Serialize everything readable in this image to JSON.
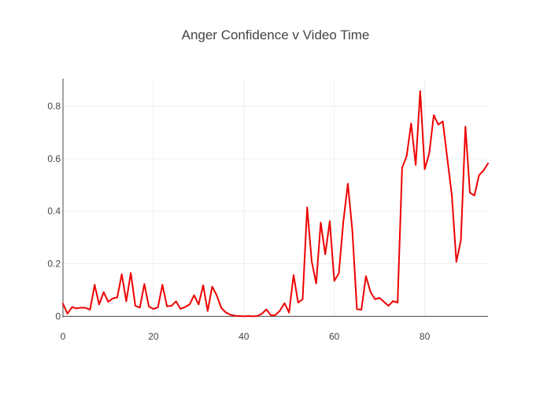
{
  "chart_data": {
    "type": "line",
    "title": "Anger Confidence v Video Time",
    "xlabel": "",
    "ylabel": "",
    "xlim": [
      0,
      94
    ],
    "ylim": [
      -0.005,
      0.905
    ],
    "x_ticks": [
      0,
      20,
      40,
      60,
      80
    ],
    "y_ticks": [
      0,
      0.2,
      0.4,
      0.6,
      0.8
    ],
    "y_tick_labels": [
      "0",
      "0.2",
      "0.4",
      "0.6",
      "0.8"
    ],
    "grid": true,
    "legend": "none",
    "series": [
      {
        "color": "#ee0000",
        "x": [
          0,
          1,
          2,
          3,
          4,
          5,
          6,
          7,
          8,
          9,
          10,
          11,
          12,
          13,
          14,
          15,
          16,
          17,
          18,
          19,
          20,
          21,
          22,
          23,
          24,
          25,
          26,
          27,
          28,
          29,
          30,
          31,
          32,
          33,
          34,
          35,
          36,
          37,
          38,
          39,
          40,
          41,
          42,
          43,
          44,
          45,
          46,
          47,
          48,
          49,
          50,
          51,
          52,
          53,
          54,
          55,
          56,
          57,
          58,
          59,
          60,
          61,
          62,
          63,
          64,
          65,
          66,
          67,
          68,
          69,
          70,
          71,
          72,
          73,
          74,
          75,
          76,
          77,
          78,
          79,
          80,
          81,
          82,
          83,
          84,
          85,
          86,
          87,
          88,
          89,
          90,
          91,
          92,
          93,
          94
        ],
        "y": [
          0.048,
          0.01,
          0.035,
          0.03,
          0.033,
          0.032,
          0.025,
          0.12,
          0.045,
          0.092,
          0.055,
          0.068,
          0.072,
          0.16,
          0.057,
          0.165,
          0.04,
          0.033,
          0.123,
          0.037,
          0.028,
          0.034,
          0.12,
          0.038,
          0.04,
          0.057,
          0.028,
          0.035,
          0.045,
          0.08,
          0.045,
          0.118,
          0.02,
          0.113,
          0.08,
          0.032,
          0.015,
          0.006,
          0.002,
          0.001,
          0.0,
          0.001,
          0.0,
          0.001,
          0.01,
          0.026,
          0.003,
          0.005,
          0.022,
          0.05,
          0.014,
          0.157,
          0.052,
          0.065,
          0.415,
          0.21,
          0.125,
          0.357,
          0.236,
          0.362,
          0.135,
          0.163,
          0.36,
          0.505,
          0.325,
          0.027,
          0.025,
          0.153,
          0.093,
          0.065,
          0.07,
          0.055,
          0.04,
          0.058,
          0.052,
          0.565,
          0.61,
          0.734,
          0.576,
          0.858,
          0.56,
          0.62,
          0.766,
          0.73,
          0.742,
          0.6,
          0.46,
          0.207,
          0.29,
          0.722,
          0.47,
          0.46,
          0.537,
          0.555,
          0.582
        ]
      }
    ]
  }
}
